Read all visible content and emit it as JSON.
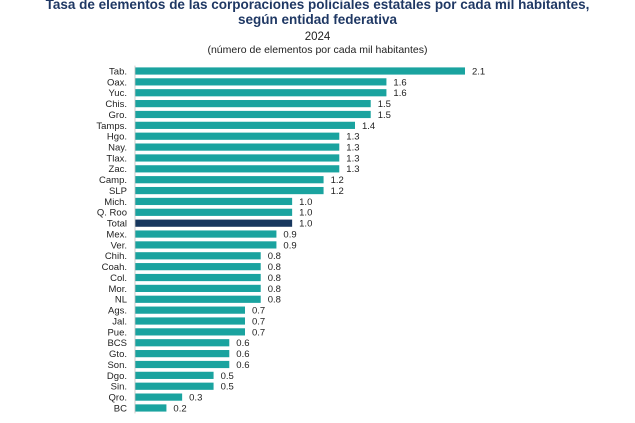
{
  "header": {
    "title_line1": "Tasa de elementos de las corporaciones policiales estatales por cada mil habitantes,",
    "title_line2": "según entidad federativa",
    "subtitle": "2024",
    "unit": "(número de elementos por cada mil habitantes)"
  },
  "colors": {
    "bar": "#1aa39f",
    "highlight": "#17375e",
    "title": "#1f3864"
  },
  "chart_data": {
    "type": "bar",
    "orientation": "horizontal",
    "title": "Tasa de elementos de las corporaciones policiales estatales por cada mil habitantes, según entidad federativa",
    "subtitle": "2024",
    "xlabel": "",
    "ylabel": "",
    "xlim": [
      0,
      2.1
    ],
    "grid": false,
    "legend": "none",
    "highlight_category": "Total",
    "categories": [
      "Tab.",
      "Oax.",
      "Yuc.",
      "Chis.",
      "Gro.",
      "Tamps.",
      "Hgo.",
      "Nay.",
      "Tlax.",
      "Zac.",
      "Camp.",
      "SLP",
      "Mich.",
      "Q. Roo",
      "Total",
      "Mex.",
      "Ver.",
      "Chih.",
      "Coah.",
      "Col.",
      "Mor.",
      "NL",
      "Ags.",
      "Jal.",
      "Pue.",
      "BCS",
      "Gto.",
      "Son.",
      "Dgo.",
      "Sin.",
      "Qro.",
      "BC"
    ],
    "values": [
      2.1,
      1.6,
      1.6,
      1.5,
      1.5,
      1.4,
      1.3,
      1.3,
      1.3,
      1.3,
      1.2,
      1.2,
      1.0,
      1.0,
      1.0,
      0.9,
      0.9,
      0.8,
      0.8,
      0.8,
      0.8,
      0.8,
      0.7,
      0.7,
      0.7,
      0.6,
      0.6,
      0.6,
      0.5,
      0.5,
      0.3,
      0.2
    ],
    "value_labels": [
      "2.1",
      "1.6",
      "1.6",
      "1.5",
      "1.5",
      "1.4",
      "1.3",
      "1.3",
      "1.3",
      "1.3",
      "1.2",
      "1.2",
      "1.0",
      "1.0",
      "1.0",
      "0.9",
      "0.9",
      "0.8",
      "0.8",
      "0.8",
      "0.8",
      "0.8",
      "0.7",
      "0.7",
      "0.7",
      "0.6",
      "0.6",
      "0.6",
      "0.5",
      "0.5",
      "0.3",
      "0.2"
    ]
  }
}
